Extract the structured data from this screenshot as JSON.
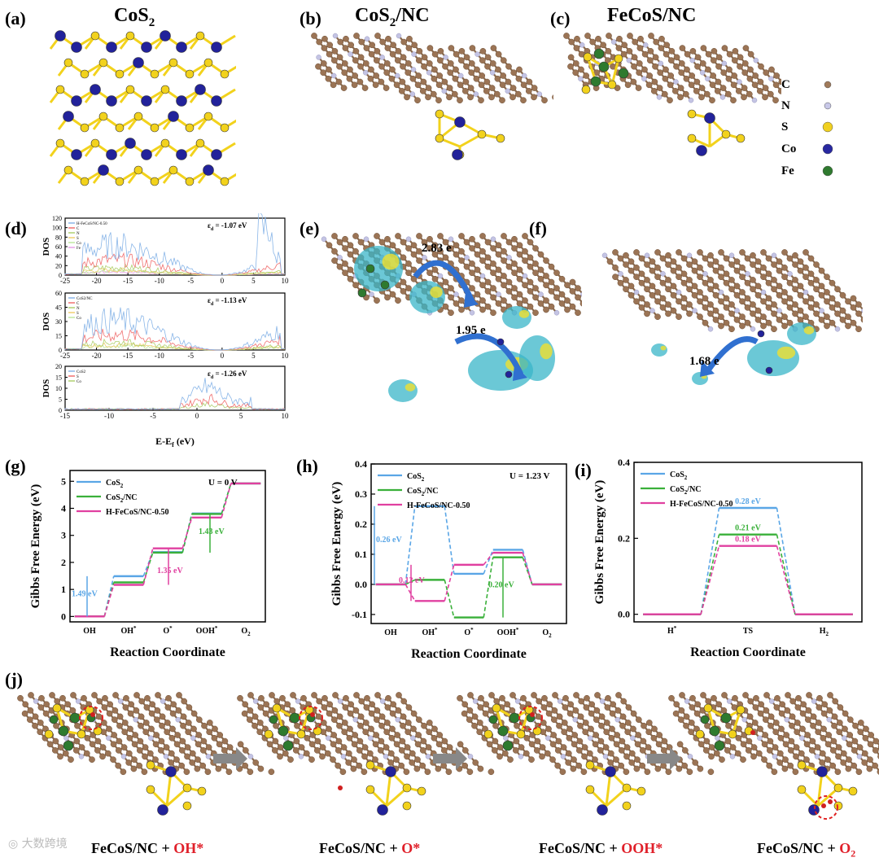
{
  "top": {
    "panels": [
      {
        "letter": "(a)",
        "title": "CoS",
        "sub": "2",
        "suffix": ""
      },
      {
        "letter": "(b)",
        "title": "CoS",
        "sub": "2",
        "suffix": "/NC"
      },
      {
        "letter": "(c)",
        "title": "FeCoS/NC",
        "sub": "",
        "suffix": ""
      }
    ],
    "legend": [
      {
        "label": "C",
        "color": "#a07a5a"
      },
      {
        "label": "N",
        "color": "#c8c8e8"
      },
      {
        "label": "S",
        "color": "#f0d020"
      },
      {
        "label": "Co",
        "color": "#2828a0"
      },
      {
        "label": "Fe",
        "color": "#2f7a2f"
      }
    ]
  },
  "dos": {
    "letter": "(d)",
    "ylabel": "DOS",
    "xlabel": "E-E",
    "xlabel_sub": "f",
    "xlabel_unit": " (eV)",
    "panels": [
      {
        "eps": "ε",
        "eps_sub": "d",
        "eps_val": " = -1.07 eV",
        "legend": [
          "H-FeCoS/NC-0.50",
          "C",
          "N",
          "S",
          "Co",
          "Fe"
        ],
        "yticks": [
          "0",
          "20",
          "40",
          "60",
          "80",
          "100",
          "120"
        ],
        "xticks": [
          "-25",
          "-20",
          "-15",
          "-10",
          "-5",
          "0",
          "5",
          "10"
        ]
      },
      {
        "eps": "ε",
        "eps_sub": "d",
        "eps_val": " = -1.13 eV",
        "legend": [
          "CoS2/NC",
          "C",
          "N",
          "S",
          "Co"
        ],
        "yticks": [
          "0",
          "15",
          "30",
          "45",
          "60"
        ],
        "xticks": [
          "-25",
          "-20",
          "-15",
          "-10",
          "-5",
          "0",
          "5",
          "10"
        ]
      },
      {
        "eps": "ε",
        "eps_sub": "d",
        "eps_val": " = -1.26 eV",
        "legend": [
          "CoS2",
          "S",
          "Co"
        ],
        "yticks": [
          "0",
          "5",
          "10",
          "15",
          "20"
        ],
        "xticks": [
          "-15",
          "-10",
          "-5",
          "0",
          "5",
          "10"
        ]
      }
    ]
  },
  "charge": {
    "e_letter": "(e)",
    "f_letter": "(f)",
    "e_val1": "2.83 e",
    "e_val2": "1.95 e",
    "f_val": "1.68 e"
  },
  "chart_data": [
    {
      "type": "line",
      "letter": "(g)",
      "title": "U = 0 V",
      "ylabel": "Gibbs Free Energy (eV)",
      "xlabel": "Reaction Coordinate",
      "categories": [
        "OH",
        "OH*",
        "O*",
        "OOH*",
        "O2"
      ],
      "ylim": [
        -0.2,
        5.4
      ],
      "yticks": [
        0,
        1,
        2,
        3,
        4,
        5
      ],
      "series": [
        {
          "name": "CoS2",
          "color": "#5aa6e6",
          "values": [
            0,
            1.49,
            2.38,
            3.81,
            4.92
          ]
        },
        {
          "name": "CoS2/NC",
          "color": "#3ab03a",
          "values": [
            0,
            1.26,
            2.36,
            3.79,
            4.92
          ]
        },
        {
          "name": "H-FeCoS/NC-0.50",
          "color": "#e040a0",
          "values": [
            0,
            1.17,
            2.52,
            3.66,
            4.92
          ]
        }
      ],
      "annotations": [
        {
          "text": "1.49 eV",
          "color": "#5aa6e6"
        },
        {
          "text": "1.35 eV",
          "color": "#e040a0"
        },
        {
          "text": "1.43 eV",
          "color": "#3ab03a"
        }
      ]
    },
    {
      "type": "line",
      "letter": "(h)",
      "title": "U = 1.23 V",
      "ylabel": "Gibbs Free Energy (eV)",
      "xlabel": "Reaction Coordinate",
      "categories": [
        "OH",
        "OH*",
        "O*",
        "OOH*",
        "O2"
      ],
      "ylim": [
        -0.13,
        0.4
      ],
      "yticks": [
        -0.1,
        0.0,
        0.1,
        0.2,
        0.3,
        0.4
      ],
      "series": [
        {
          "name": "CoS2",
          "color": "#5aa6e6",
          "values": [
            0,
            0.26,
            0.035,
            0.115,
            0
          ]
        },
        {
          "name": "CoS2/NC",
          "color": "#3ab03a",
          "values": [
            0,
            0.015,
            -0.11,
            0.09,
            0
          ]
        },
        {
          "name": "H-FeCoS/NC-0.50",
          "color": "#e040a0",
          "values": [
            0,
            -0.055,
            0.065,
            0.105,
            0
          ]
        }
      ],
      "annotations": [
        {
          "text": "0.26 eV",
          "color": "#5aa6e6"
        },
        {
          "text": "0.12 eV",
          "color": "#e040a0"
        },
        {
          "text": "0.20 eV",
          "color": "#3ab03a"
        }
      ]
    },
    {
      "type": "line",
      "letter": "(i)",
      "title": "",
      "ylabel": "Gibbs Free Energy (eV)",
      "xlabel": "Reaction Coordinate",
      "categories": [
        "H*",
        "TS",
        "H2"
      ],
      "ylim": [
        -0.02,
        0.4
      ],
      "yticks": [
        0.0,
        0.2,
        0.4
      ],
      "series": [
        {
          "name": "CoS2",
          "color": "#5aa6e6",
          "values": [
            0,
            0.28,
            0
          ]
        },
        {
          "name": "CoS2/NC",
          "color": "#3ab03a",
          "values": [
            0,
            0.21,
            0
          ]
        },
        {
          "name": "H-FeCoS/NC-0.50",
          "color": "#e040a0",
          "values": [
            0,
            0.18,
            0
          ]
        }
      ],
      "annotations": [
        {
          "text": "0.28 eV",
          "color": "#5aa6e6"
        },
        {
          "text": "0.21 eV",
          "color": "#3ab03a"
        },
        {
          "text": "0.18 eV",
          "color": "#e040a0"
        }
      ]
    }
  ],
  "mech": {
    "letter": "(j)",
    "steps": [
      {
        "base": "FeCoS/NC + ",
        "ads": "OH*"
      },
      {
        "base": "FeCoS/NC + ",
        "ads": "O*"
      },
      {
        "base": "FeCoS/NC + ",
        "ads": "OOH*"
      },
      {
        "base": "FeCoS/NC + ",
        "ads": "O",
        "ads_sub": "2"
      }
    ],
    "watermark": "大数跨境"
  }
}
